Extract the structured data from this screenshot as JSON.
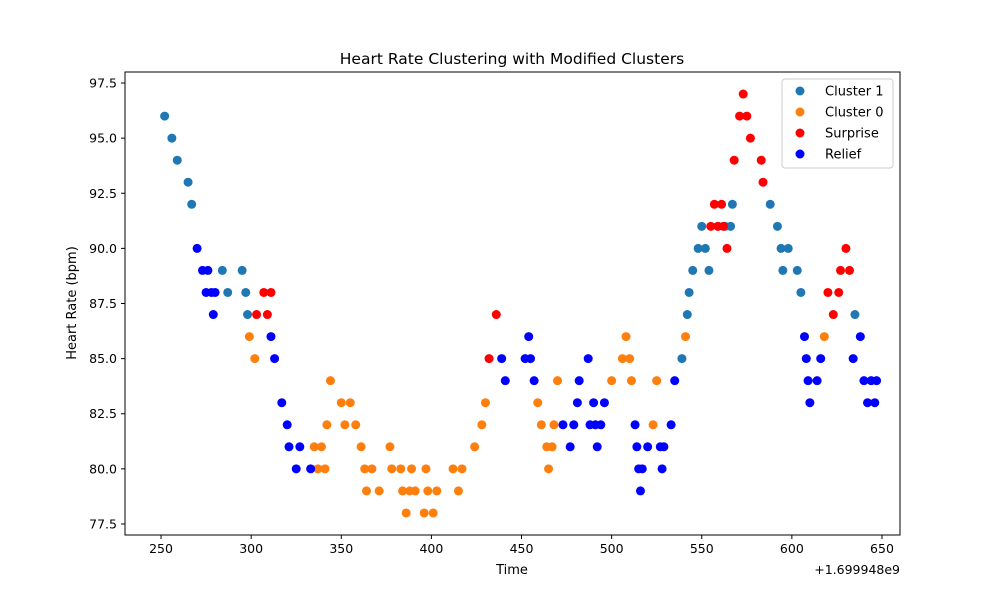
{
  "chart_data": {
    "type": "scatter",
    "title": "Heart Rate Clustering with Modified Clusters",
    "xlabel": "Time",
    "ylabel": "Heart Rate (bpm)",
    "x_offset_label": "+1.699948e9",
    "xlim": [
      230,
      660
    ],
    "ylim": [
      77,
      98
    ],
    "xticks": [
      250,
      300,
      350,
      400,
      450,
      500,
      550,
      600,
      650
    ],
    "yticks": [
      77.5,
      80.0,
      82.5,
      85.0,
      87.5,
      90.0,
      92.5,
      95.0,
      97.5
    ],
    "xtick_labels": [
      "250",
      "300",
      "350",
      "400",
      "450",
      "500",
      "550",
      "600",
      "650"
    ],
    "ytick_labels": [
      "77.5",
      "80.0",
      "82.5",
      "85.0",
      "87.5",
      "90.0",
      "92.5",
      "95.0",
      "97.5"
    ],
    "grid": false,
    "legend_position": "top-right",
    "series": [
      {
        "name": "Cluster 1",
        "color": "#1f77b4",
        "points": [
          [
            252,
            96
          ],
          [
            256,
            95
          ],
          [
            259,
            94
          ],
          [
            265,
            93
          ],
          [
            267,
            92
          ],
          [
            284,
            89
          ],
          [
            287,
            88
          ],
          [
            295,
            89
          ],
          [
            297,
            88
          ],
          [
            298,
            87
          ],
          [
            545,
            89
          ],
          [
            548,
            90
          ],
          [
            550,
            91
          ],
          [
            552,
            90
          ],
          [
            554,
            89
          ],
          [
            559,
            91
          ],
          [
            563,
            91
          ],
          [
            566,
            91
          ],
          [
            567,
            92
          ],
          [
            588,
            92
          ],
          [
            592,
            91
          ],
          [
            594,
            90
          ],
          [
            595,
            89
          ],
          [
            598,
            90
          ],
          [
            603,
            89
          ],
          [
            605,
            88
          ],
          [
            635,
            87
          ],
          [
            539,
            85
          ],
          [
            542,
            87
          ],
          [
            543,
            88
          ]
        ]
      },
      {
        "name": "Cluster 0",
        "color": "#ff7f0e",
        "points": [
          [
            299,
            86
          ],
          [
            302,
            85
          ],
          [
            335,
            81
          ],
          [
            337,
            80
          ],
          [
            339,
            81
          ],
          [
            341,
            80
          ],
          [
            342,
            82
          ],
          [
            344,
            84
          ],
          [
            350,
            83
          ],
          [
            352,
            82
          ],
          [
            355,
            83
          ],
          [
            358,
            82
          ],
          [
            361,
            81
          ],
          [
            363,
            80
          ],
          [
            364,
            79
          ],
          [
            367,
            80
          ],
          [
            371,
            79
          ],
          [
            377,
            81
          ],
          [
            378,
            80
          ],
          [
            383,
            80
          ],
          [
            384,
            79
          ],
          [
            386,
            78
          ],
          [
            388,
            79
          ],
          [
            389,
            80
          ],
          [
            391,
            79
          ],
          [
            396,
            78
          ],
          [
            397,
            80
          ],
          [
            398,
            79
          ],
          [
            401,
            78
          ],
          [
            403,
            79
          ],
          [
            412,
            80
          ],
          [
            415,
            79
          ],
          [
            417,
            80
          ],
          [
            424,
            81
          ],
          [
            428,
            82
          ],
          [
            430,
            83
          ],
          [
            459,
            83
          ],
          [
            461,
            82
          ],
          [
            464,
            81
          ],
          [
            465,
            80
          ],
          [
            467,
            81
          ],
          [
            468,
            82
          ],
          [
            470,
            84
          ],
          [
            500,
            84
          ],
          [
            506,
            85
          ],
          [
            508,
            86
          ],
          [
            510,
            85
          ],
          [
            511,
            84
          ],
          [
            523,
            82
          ],
          [
            525,
            84
          ],
          [
            541,
            86
          ],
          [
            618,
            86
          ]
        ]
      },
      {
        "name": "Surprise",
        "color": "#ff0000",
        "points": [
          [
            303,
            87
          ],
          [
            307,
            88
          ],
          [
            309,
            87
          ],
          [
            311,
            88
          ],
          [
            432,
            85
          ],
          [
            436,
            87
          ],
          [
            555,
            91
          ],
          [
            557,
            92
          ],
          [
            559,
            91
          ],
          [
            561,
            92
          ],
          [
            562,
            91
          ],
          [
            564,
            90
          ],
          [
            568,
            94
          ],
          [
            571,
            96
          ],
          [
            573,
            97
          ],
          [
            575,
            96
          ],
          [
            577,
            95
          ],
          [
            583,
            94
          ],
          [
            584,
            93
          ],
          [
            620,
            88
          ],
          [
            623,
            87
          ],
          [
            626,
            88
          ],
          [
            627,
            89
          ],
          [
            630,
            90
          ],
          [
            632,
            89
          ]
        ]
      },
      {
        "name": "Relief",
        "color": "#0000ff",
        "points": [
          [
            270,
            90
          ],
          [
            273,
            89
          ],
          [
            275,
            88
          ],
          [
            276,
            89
          ],
          [
            278,
            88
          ],
          [
            279,
            87
          ],
          [
            280,
            88
          ],
          [
            311,
            86
          ],
          [
            313,
            85
          ],
          [
            317,
            83
          ],
          [
            320,
            82
          ],
          [
            321,
            81
          ],
          [
            325,
            80
          ],
          [
            327,
            81
          ],
          [
            333,
            80
          ],
          [
            439,
            85
          ],
          [
            441,
            84
          ],
          [
            452,
            85
          ],
          [
            454,
            86
          ],
          [
            455,
            85
          ],
          [
            457,
            84
          ],
          [
            473,
            82
          ],
          [
            477,
            81
          ],
          [
            479,
            82
          ],
          [
            481,
            83
          ],
          [
            482,
            84
          ],
          [
            487,
            85
          ],
          [
            488,
            82
          ],
          [
            490,
            83
          ],
          [
            491,
            82
          ],
          [
            492,
            81
          ],
          [
            494,
            82
          ],
          [
            496,
            83
          ],
          [
            513,
            82
          ],
          [
            514,
            81
          ],
          [
            515,
            80
          ],
          [
            516,
            79
          ],
          [
            517,
            80
          ],
          [
            520,
            81
          ],
          [
            527,
            81
          ],
          [
            528,
            80
          ],
          [
            529,
            81
          ],
          [
            533,
            82
          ],
          [
            535,
            84
          ],
          [
            607,
            86
          ],
          [
            608,
            85
          ],
          [
            609,
            84
          ],
          [
            610,
            83
          ],
          [
            614,
            84
          ],
          [
            616,
            85
          ],
          [
            634,
            85
          ],
          [
            638,
            86
          ],
          [
            640,
            84
          ],
          [
            642,
            83
          ],
          [
            644,
            84
          ],
          [
            646,
            83
          ],
          [
            647,
            84
          ]
        ]
      }
    ]
  }
}
